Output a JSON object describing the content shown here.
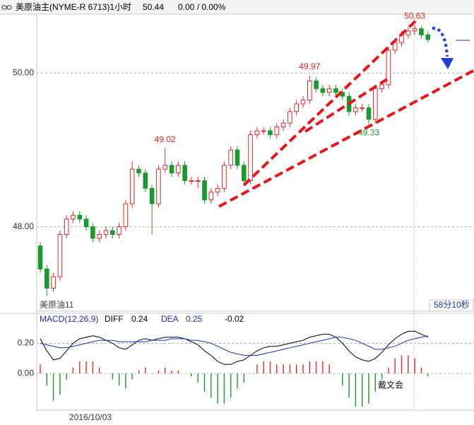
{
  "chart_data": [
    {
      "type": "candlestick",
      "title": "美原油主(NYME-R 6713)1小时",
      "change": "0.00 / 0.00%",
      "open": [
        47.75,
        47.45,
        47.2,
        47.35,
        47.9,
        48.1,
        48.15,
        48.1,
        48.0,
        47.85,
        47.9,
        47.95,
        47.9,
        48.0,
        48.3,
        48.75,
        48.7,
        48.5,
        48.3,
        48.75,
        48.8,
        48.7,
        48.8,
        48.6,
        48.6,
        48.6,
        48.35,
        48.45,
        48.5,
        48.8,
        49.0,
        48.8,
        48.6,
        49.2,
        49.25,
        49.25,
        49.2,
        49.3,
        49.35,
        49.5,
        49.6,
        49.65,
        49.9,
        49.8,
        49.75,
        49.8,
        49.75,
        49.7,
        49.5,
        49.55,
        49.55,
        49.4,
        49.8,
        49.85,
        50.3,
        50.4,
        50.5,
        50.55,
        50.58,
        50.5
      ],
      "high": [
        47.8,
        47.5,
        47.4,
        47.95,
        48.15,
        48.2,
        48.2,
        48.15,
        48.05,
        47.95,
        48.0,
        48.0,
        48.05,
        48.35,
        48.85,
        48.8,
        48.75,
        48.55,
        48.8,
        49.02,
        48.85,
        48.85,
        48.85,
        48.65,
        48.65,
        48.65,
        48.5,
        48.55,
        48.85,
        49.05,
        49.05,
        48.85,
        49.25,
        49.3,
        49.3,
        49.3,
        49.35,
        49.4,
        49.55,
        49.65,
        49.7,
        49.97,
        49.95,
        49.85,
        49.85,
        49.85,
        49.8,
        49.75,
        49.6,
        49.6,
        49.6,
        49.85,
        49.9,
        50.35,
        50.45,
        50.55,
        50.6,
        50.63,
        50.62,
        50.55
      ],
      "low": [
        47.4,
        47.1,
        47.15,
        47.3,
        47.85,
        48.05,
        48.05,
        47.95,
        47.8,
        47.8,
        47.85,
        47.85,
        47.85,
        47.95,
        48.25,
        48.65,
        48.45,
        47.9,
        48.25,
        48.7,
        48.65,
        48.65,
        48.55,
        48.55,
        48.5,
        48.3,
        48.3,
        48.4,
        48.45,
        48.75,
        48.75,
        48.55,
        48.55,
        49.15,
        49.2,
        49.15,
        49.15,
        49.25,
        49.3,
        49.45,
        49.55,
        49.6,
        49.75,
        49.7,
        49.7,
        49.7,
        49.65,
        49.45,
        49.45,
        49.5,
        49.33,
        49.35,
        49.75,
        49.8,
        50.25,
        50.35,
        50.45,
        50.5,
        50.45,
        50.4
      ],
      "close": [
        47.45,
        47.2,
        47.35,
        47.9,
        48.1,
        48.15,
        48.1,
        48.0,
        47.85,
        47.9,
        47.95,
        47.9,
        48.0,
        48.3,
        48.75,
        48.7,
        48.5,
        48.3,
        48.75,
        48.8,
        48.7,
        48.8,
        48.6,
        48.6,
        48.6,
        48.35,
        48.45,
        48.5,
        48.8,
        49.0,
        48.8,
        48.6,
        49.2,
        49.25,
        49.25,
        49.2,
        49.3,
        49.35,
        49.5,
        49.6,
        49.65,
        49.9,
        49.8,
        49.75,
        49.8,
        49.75,
        49.7,
        49.5,
        49.55,
        49.55,
        49.4,
        49.8,
        49.85,
        50.3,
        50.4,
        50.5,
        50.55,
        50.58,
        50.5,
        50.44
      ],
      "up_color": "#e8262b",
      "down_color": "#1a9a2e",
      "ylim": [
        46.9,
        50.77
      ],
      "yticks": [
        {
          "value": 50,
          "label": "50.00"
        },
        {
          "value": 48,
          "label": "48.00"
        }
      ],
      "grid": true,
      "annotations": [
        49.02,
        49.97,
        50.63,
        49.33
      ],
      "instrument_label": "美原油11",
      "countdown": "58分10秒"
    },
    {
      "type": "macd",
      "title": "MACD(12,26,9)",
      "x_label": "2016/10/03",
      "series": [
        {
          "name": "DIFF",
          "color": "#000000",
          "values": [
            0.23,
            0.15,
            0.09,
            0.1,
            0.15,
            0.2,
            0.23,
            0.24,
            0.25,
            0.24,
            0.22,
            0.2,
            0.17,
            0.16,
            0.19,
            0.22,
            0.23,
            0.22,
            0.23,
            0.24,
            0.24,
            0.24,
            0.23,
            0.21,
            0.19,
            0.15,
            0.12,
            0.08,
            0.06,
            0.06,
            0.08,
            0.09,
            0.12,
            0.15,
            0.17,
            0.18,
            0.18,
            0.19,
            0.2,
            0.21,
            0.22,
            0.24,
            0.25,
            0.26,
            0.26,
            0.24,
            0.2,
            0.15,
            0.11,
            0.09,
            0.08,
            0.1,
            0.14,
            0.19,
            0.23,
            0.26,
            0.28,
            0.28,
            0.26,
            0.24
          ]
        },
        {
          "name": "DEA",
          "color": "#1f2fb5",
          "values": [
            0.2,
            0.19,
            0.18,
            0.17,
            0.17,
            0.18,
            0.19,
            0.2,
            0.21,
            0.22,
            0.22,
            0.22,
            0.21,
            0.21,
            0.21,
            0.21,
            0.21,
            0.22,
            0.22,
            0.22,
            0.23,
            0.23,
            0.23,
            0.22,
            0.22,
            0.21,
            0.2,
            0.18,
            0.16,
            0.14,
            0.13,
            0.12,
            0.12,
            0.12,
            0.13,
            0.14,
            0.15,
            0.16,
            0.17,
            0.18,
            0.19,
            0.2,
            0.21,
            0.22,
            0.23,
            0.24,
            0.24,
            0.23,
            0.22,
            0.2,
            0.18,
            0.16,
            0.16,
            0.17,
            0.18,
            0.2,
            0.22,
            0.23,
            0.24,
            0.25
          ]
        },
        {
          "type": "bar",
          "values": [
            0.06,
            -0.08,
            -0.18,
            -0.14,
            -0.04,
            0.04,
            0.08,
            0.08,
            0.08,
            0.04,
            0,
            -0.04,
            -0.08,
            -0.1,
            -0.04,
            0.02,
            0.04,
            0,
            0.02,
            0.04,
            0.02,
            0.02,
            0,
            -0.02,
            -0.06,
            -0.12,
            -0.16,
            -0.2,
            -0.2,
            -0.16,
            -0.1,
            -0.06,
            0,
            0.06,
            0.08,
            0.08,
            0.06,
            0.06,
            0.06,
            0.06,
            0.06,
            0.08,
            0.08,
            0.08,
            0.06,
            0,
            -0.08,
            -0.16,
            -0.22,
            -0.22,
            -0.2,
            -0.12,
            -0.04,
            0.04,
            0.1,
            0.12,
            0.12,
            0.1,
            0.04,
            -0.02
          ]
        }
      ],
      "up_color": "#e8262b",
      "down_color": "#1a9a2e",
      "ylim": [
        -0.243,
        0.352
      ],
      "yticks": [
        {
          "value": 0.2,
          "label": "0.20"
        },
        {
          "value": 0,
          "label": "0.00"
        }
      ],
      "grid": true
    }
  ],
  "watermark": "戴文会"
}
